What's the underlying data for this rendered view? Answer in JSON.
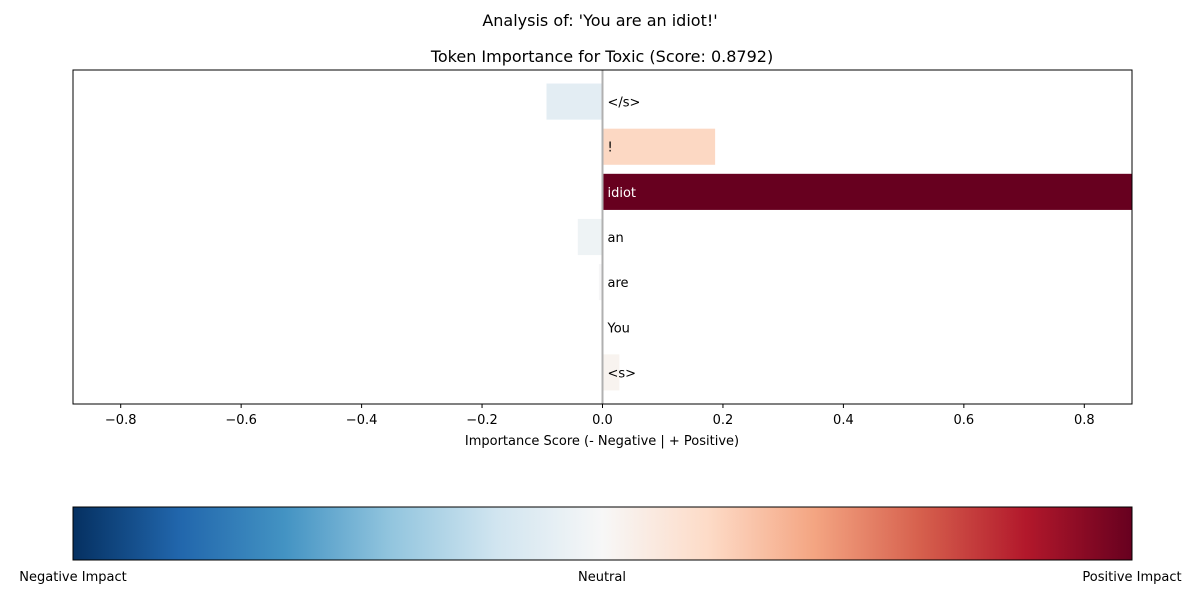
{
  "suptitle": "Analysis of: 'You are an idiot!'",
  "chart_data": {
    "type": "bar",
    "orientation": "horizontal",
    "title": "Token Importance for Toxic (Score: 0.8792)",
    "xlabel": "Importance Score (- Negative | + Positive)",
    "ylabel": "",
    "xlim": [
      -0.8792,
      0.8792
    ],
    "xticks": [
      -0.8,
      -0.6,
      -0.4,
      -0.2,
      0.0,
      0.2,
      0.4,
      0.6,
      0.8
    ],
    "xtick_labels": [
      "−0.8",
      "−0.6",
      "−0.4",
      "−0.2",
      "0.0",
      "0.2",
      "0.4",
      "0.6",
      "0.8"
    ],
    "categories": [
      "<s>",
      "You",
      "are",
      "an",
      "idiot",
      "!",
      "</s>"
    ],
    "values": [
      0.028,
      -0.002,
      -0.006,
      -0.041,
      0.8792,
      0.187,
      -0.093
    ],
    "grid": false,
    "colormap": "RdBu_r"
  },
  "colorbar": {
    "left_label": "Negative Impact",
    "center_label": "Neutral",
    "right_label": "Positive Impact",
    "stops": [
      "#053061",
      "#2166ac",
      "#4393c3",
      "#92c5de",
      "#d1e5f0",
      "#f7f7f7",
      "#fddbc7",
      "#f4a582",
      "#d6604d",
      "#b2182b",
      "#67001f"
    ]
  }
}
